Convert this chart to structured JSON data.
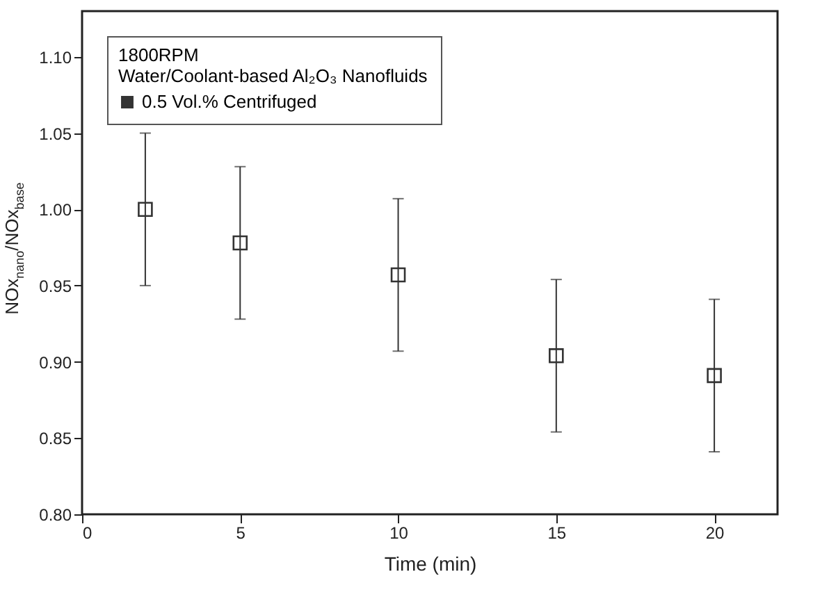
{
  "chart_data": {
    "type": "scatter",
    "legend_title": "1800RPM\nWater/Coolant-based Al₂O₃ Nanofluids",
    "xlabel": "Time (min)",
    "ylabel": "NOx$_{nano}$/NOx$_{base}$",
    "x": [
      2,
      5,
      10,
      15,
      20
    ],
    "series": [
      {
        "name": "0.5 Vol.% Centrifuged",
        "color": "#333333",
        "values": [
          1.0,
          0.978,
          0.957,
          0.904,
          0.891
        ],
        "errors": [
          0.05,
          0.05,
          0.05,
          0.05,
          0.05
        ]
      }
    ],
    "xlim": [
      0,
      22
    ],
    "xticks": [
      0,
      5,
      10,
      15,
      20
    ],
    "ylim": [
      0.8,
      1.13
    ],
    "yticks": [
      {
        "value": 0.8,
        "label": "0.80"
      },
      0.85,
      {
        "value": 0.9,
        "label": "0.90"
      },
      0.95,
      {
        "value": 1.0,
        "label": "1.00"
      },
      1.05,
      {
        "value": 1.1,
        "label": "1.10"
      }
    ],
    "marker": "square",
    "legend": "top left",
    "grid": false
  }
}
